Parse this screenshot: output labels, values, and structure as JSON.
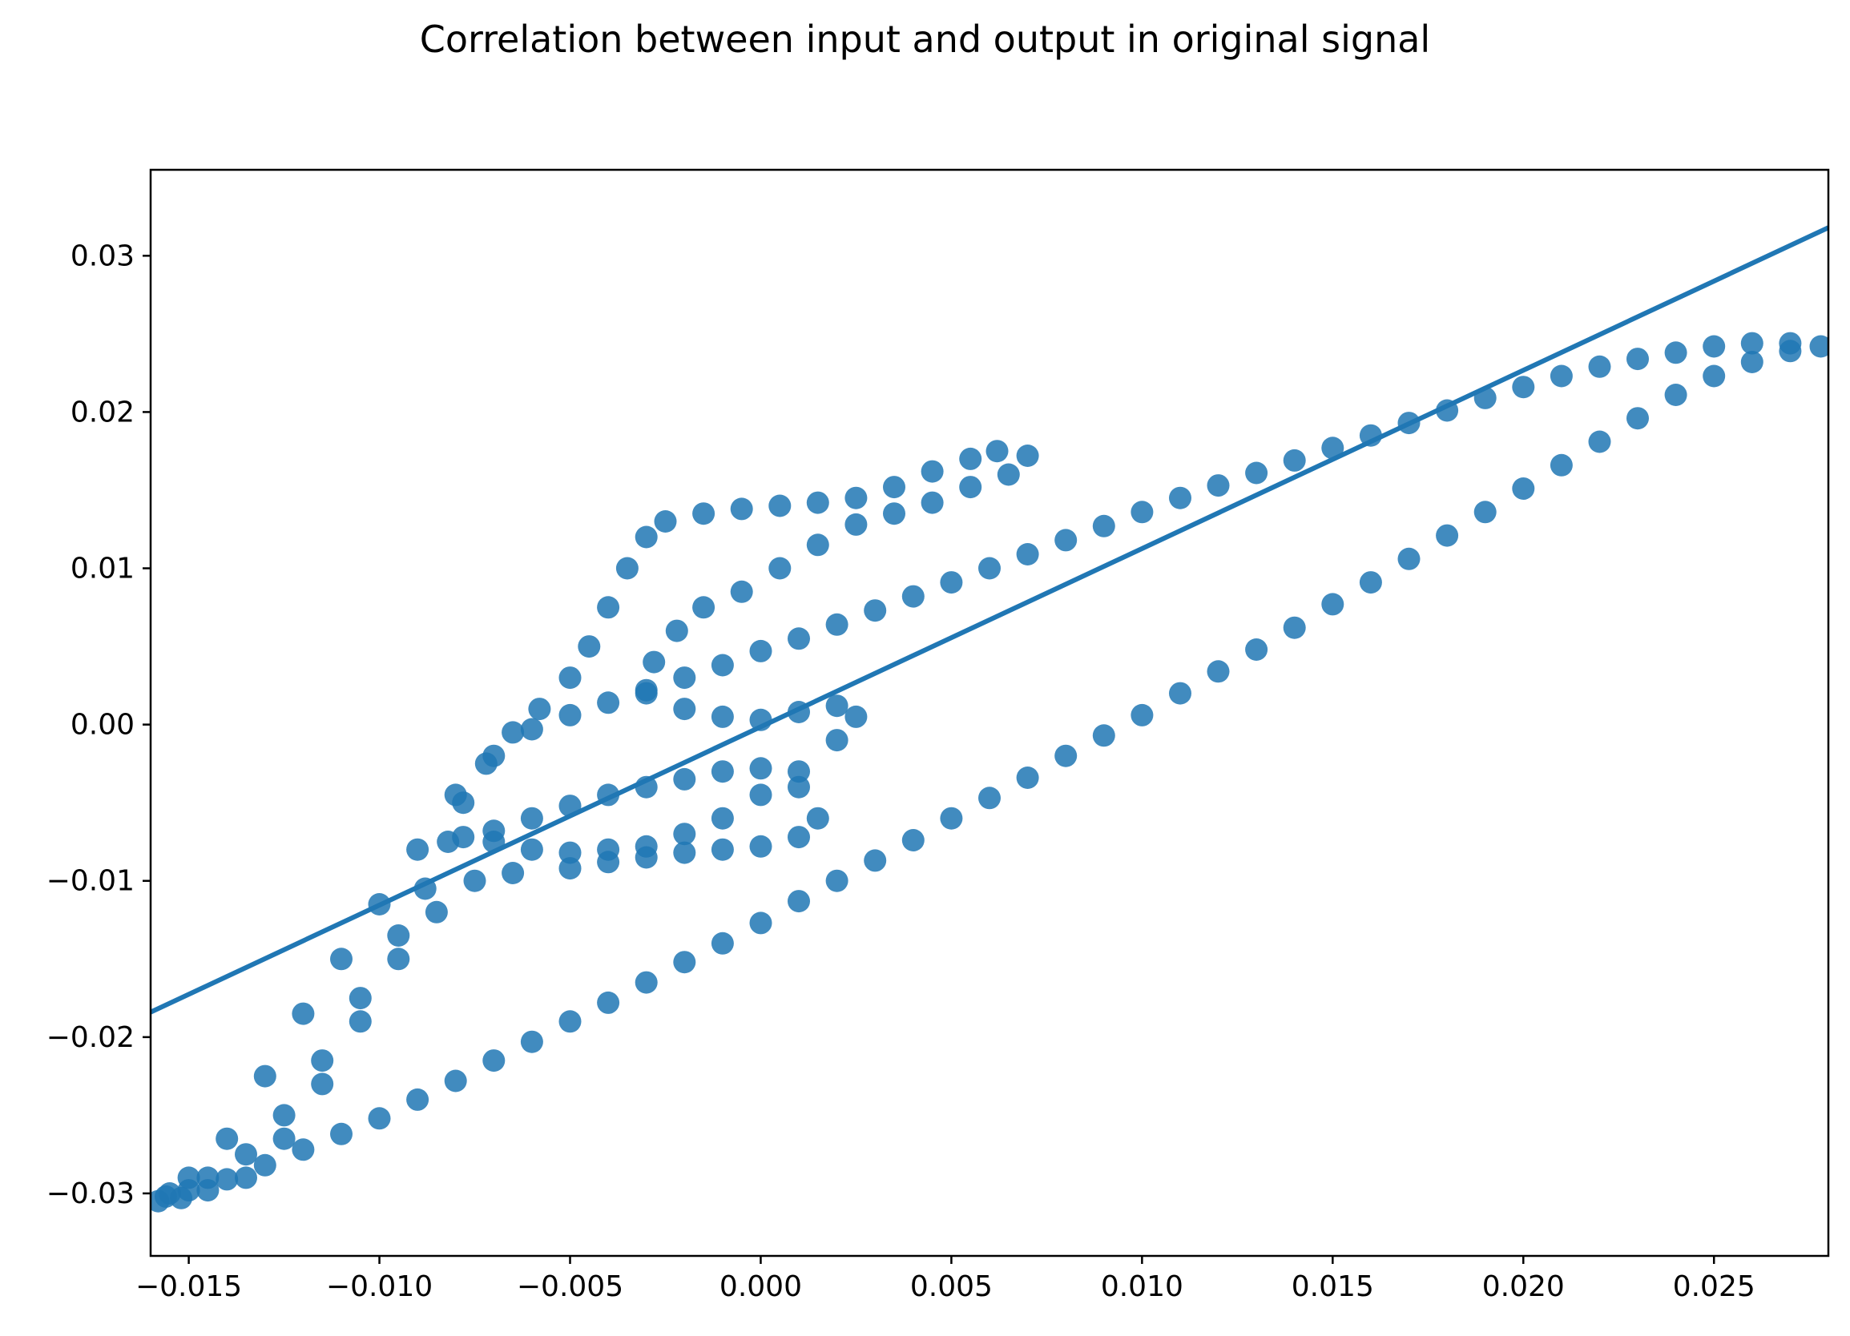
{
  "chart_data": {
    "type": "scatter",
    "title": "Correlation between input and output in original signal",
    "xlabel": "",
    "ylabel": "",
    "xlim": [
      -0.016,
      0.028
    ],
    "ylim": [
      -0.034,
      0.0355
    ],
    "xticks": [
      -0.015,
      -0.01,
      -0.005,
      0.0,
      0.005,
      0.01,
      0.015,
      0.02,
      0.025
    ],
    "xtick_labels": [
      "−0.015",
      "−0.010",
      "−0.005",
      "0.000",
      "0.005",
      "0.010",
      "0.015",
      "0.020",
      "0.025"
    ],
    "yticks": [
      -0.03,
      -0.02,
      -0.01,
      0.0,
      0.01,
      0.02,
      0.03
    ],
    "ytick_labels": [
      "−0.03",
      "−0.02",
      "−0.01",
      "0.00",
      "0.01",
      "0.02",
      "0.03"
    ],
    "grid": false,
    "color": "#2077b4",
    "regression_line": {
      "x": [
        -0.016,
        0.028
      ],
      "y": [
        -0.0184,
        0.0318
      ]
    },
    "series": [
      {
        "points": [
          [
            -0.0158,
            -0.0305
          ],
          [
            -0.015,
            -0.0298
          ],
          [
            -0.014,
            -0.0291
          ],
          [
            -0.013,
            -0.0282
          ],
          [
            -0.012,
            -0.0272
          ],
          [
            -0.011,
            -0.0262
          ],
          [
            -0.01,
            -0.0252
          ],
          [
            -0.009,
            -0.024
          ],
          [
            -0.008,
            -0.0228
          ],
          [
            -0.007,
            -0.0215
          ],
          [
            -0.006,
            -0.0203
          ],
          [
            -0.005,
            -0.019
          ],
          [
            -0.004,
            -0.0178
          ],
          [
            -0.003,
            -0.0165
          ],
          [
            -0.002,
            -0.0152
          ],
          [
            -0.001,
            -0.014
          ],
          [
            0.0,
            -0.0127
          ],
          [
            0.001,
            -0.0113
          ],
          [
            0.002,
            -0.01
          ],
          [
            0.003,
            -0.0087
          ],
          [
            0.004,
            -0.0074
          ],
          [
            0.005,
            -0.006
          ],
          [
            0.006,
            -0.0047
          ],
          [
            0.007,
            -0.0034
          ],
          [
            0.008,
            -0.002
          ],
          [
            0.009,
            -0.0007
          ],
          [
            0.01,
            0.0006
          ],
          [
            0.011,
            0.002
          ],
          [
            0.012,
            0.0034
          ],
          [
            0.013,
            0.0048
          ],
          [
            0.014,
            0.0062
          ],
          [
            0.015,
            0.0077
          ],
          [
            0.016,
            0.0091
          ],
          [
            0.017,
            0.0106
          ],
          [
            0.018,
            0.0121
          ],
          [
            0.019,
            0.0136
          ],
          [
            0.02,
            0.0151
          ],
          [
            0.021,
            0.0166
          ],
          [
            0.022,
            0.0181
          ],
          [
            0.023,
            0.0196
          ],
          [
            0.024,
            0.0211
          ],
          [
            0.025,
            0.0223
          ],
          [
            0.026,
            0.0232
          ],
          [
            0.027,
            0.0239
          ],
          [
            0.0278,
            0.0242
          ],
          [
            0.027,
            0.0244
          ],
          [
            0.026,
            0.0244
          ],
          [
            0.025,
            0.0242
          ],
          [
            0.024,
            0.0238
          ],
          [
            0.023,
            0.0234
          ],
          [
            0.022,
            0.0229
          ],
          [
            0.021,
            0.0223
          ],
          [
            0.02,
            0.0216
          ],
          [
            0.019,
            0.0209
          ],
          [
            0.018,
            0.0201
          ],
          [
            0.017,
            0.0193
          ],
          [
            0.016,
            0.0185
          ],
          [
            0.015,
            0.0177
          ],
          [
            0.014,
            0.0169
          ],
          [
            0.013,
            0.0161
          ],
          [
            0.012,
            0.0153
          ],
          [
            0.011,
            0.0145
          ],
          [
            0.01,
            0.0136
          ],
          [
            0.009,
            0.0127
          ],
          [
            0.008,
            0.0118
          ],
          [
            0.007,
            0.0109
          ],
          [
            0.006,
            0.01
          ],
          [
            0.005,
            0.0091
          ],
          [
            0.004,
            0.0082
          ],
          [
            0.003,
            0.0073
          ],
          [
            0.002,
            0.0064
          ],
          [
            0.001,
            0.0055
          ],
          [
            0.0,
            0.0047
          ],
          [
            -0.001,
            0.0038
          ],
          [
            -0.002,
            0.003
          ],
          [
            -0.003,
            0.0022
          ],
          [
            -0.004,
            0.0014
          ],
          [
            -0.005,
            0.0006
          ],
          [
            -0.006,
            -0.0003
          ],
          [
            -0.007,
            -0.002
          ],
          [
            -0.008,
            -0.0045
          ],
          [
            -0.009,
            -0.008
          ],
          [
            -0.01,
            -0.0115
          ],
          [
            -0.011,
            -0.015
          ],
          [
            -0.012,
            -0.0185
          ],
          [
            -0.013,
            -0.0225
          ],
          [
            -0.014,
            -0.0265
          ],
          [
            -0.015,
            -0.029
          ],
          [
            -0.0156,
            -0.0302
          ]
        ]
      },
      {
        "points": [
          [
            -0.0155,
            -0.03
          ],
          [
            -0.0145,
            -0.029
          ],
          [
            -0.0135,
            -0.0275
          ],
          [
            -0.0125,
            -0.025
          ],
          [
            -0.0115,
            -0.0215
          ],
          [
            -0.0105,
            -0.0175
          ],
          [
            -0.0095,
            -0.0135
          ],
          [
            -0.0088,
            -0.0105
          ],
          [
            -0.0082,
            -0.0075
          ],
          [
            -0.0078,
            -0.005
          ],
          [
            -0.0072,
            -0.0025
          ],
          [
            -0.0065,
            -0.0005
          ],
          [
            -0.0058,
            0.001
          ],
          [
            -0.005,
            0.003
          ],
          [
            -0.0045,
            0.005
          ],
          [
            -0.004,
            0.0075
          ],
          [
            -0.0035,
            0.01
          ],
          [
            -0.003,
            0.012
          ],
          [
            -0.0025,
            0.013
          ],
          [
            -0.0015,
            0.0135
          ],
          [
            -0.0005,
            0.0138
          ],
          [
            0.0005,
            0.014
          ],
          [
            0.0015,
            0.0142
          ],
          [
            0.0025,
            0.0145
          ],
          [
            0.0035,
            0.0152
          ],
          [
            0.0045,
            0.0162
          ],
          [
            0.0055,
            0.017
          ],
          [
            0.0062,
            0.0175
          ],
          [
            0.007,
            0.0172
          ],
          [
            0.0065,
            0.016
          ],
          [
            0.0055,
            0.0152
          ],
          [
            0.0045,
            0.0142
          ],
          [
            0.0035,
            0.0135
          ],
          [
            0.0025,
            0.0128
          ],
          [
            0.0015,
            0.0115
          ],
          [
            0.0005,
            0.01
          ],
          [
            -0.0005,
            0.0085
          ],
          [
            -0.0015,
            0.0075
          ],
          [
            -0.0022,
            0.006
          ],
          [
            -0.0028,
            0.004
          ],
          [
            -0.003,
            0.002
          ],
          [
            -0.002,
            0.001
          ],
          [
            -0.001,
            0.0005
          ],
          [
            0.0,
            0.0003
          ],
          [
            0.001,
            0.0008
          ],
          [
            0.002,
            0.0012
          ],
          [
            0.0025,
            0.0005
          ],
          [
            0.002,
            -0.001
          ],
          [
            0.001,
            -0.003
          ],
          [
            0.0,
            -0.0045
          ],
          [
            -0.001,
            -0.006
          ],
          [
            -0.002,
            -0.007
          ],
          [
            -0.003,
            -0.0078
          ],
          [
            -0.004,
            -0.008
          ],
          [
            -0.005,
            -0.0082
          ],
          [
            -0.006,
            -0.008
          ],
          [
            -0.007,
            -0.0075
          ],
          [
            -0.0078,
            -0.0072
          ],
          [
            -0.007,
            -0.0068
          ],
          [
            -0.006,
            -0.006
          ],
          [
            -0.005,
            -0.0052
          ],
          [
            -0.004,
            -0.0045
          ],
          [
            -0.003,
            -0.004
          ],
          [
            -0.002,
            -0.0035
          ],
          [
            -0.001,
            -0.003
          ],
          [
            0.0,
            -0.0028
          ],
          [
            0.001,
            -0.004
          ],
          [
            0.0015,
            -0.006
          ],
          [
            0.001,
            -0.0072
          ],
          [
            0.0,
            -0.0078
          ],
          [
            -0.001,
            -0.008
          ],
          [
            -0.002,
            -0.0082
          ],
          [
            -0.003,
            -0.0085
          ],
          [
            -0.004,
            -0.0088
          ],
          [
            -0.005,
            -0.0092
          ],
          [
            -0.0065,
            -0.0095
          ],
          [
            -0.0075,
            -0.01
          ],
          [
            -0.0085,
            -0.012
          ],
          [
            -0.0095,
            -0.015
          ],
          [
            -0.0105,
            -0.019
          ],
          [
            -0.0115,
            -0.023
          ],
          [
            -0.0125,
            -0.0265
          ],
          [
            -0.0135,
            -0.029
          ],
          [
            -0.0145,
            -0.0298
          ],
          [
            -0.0152,
            -0.0303
          ]
        ]
      }
    ]
  }
}
